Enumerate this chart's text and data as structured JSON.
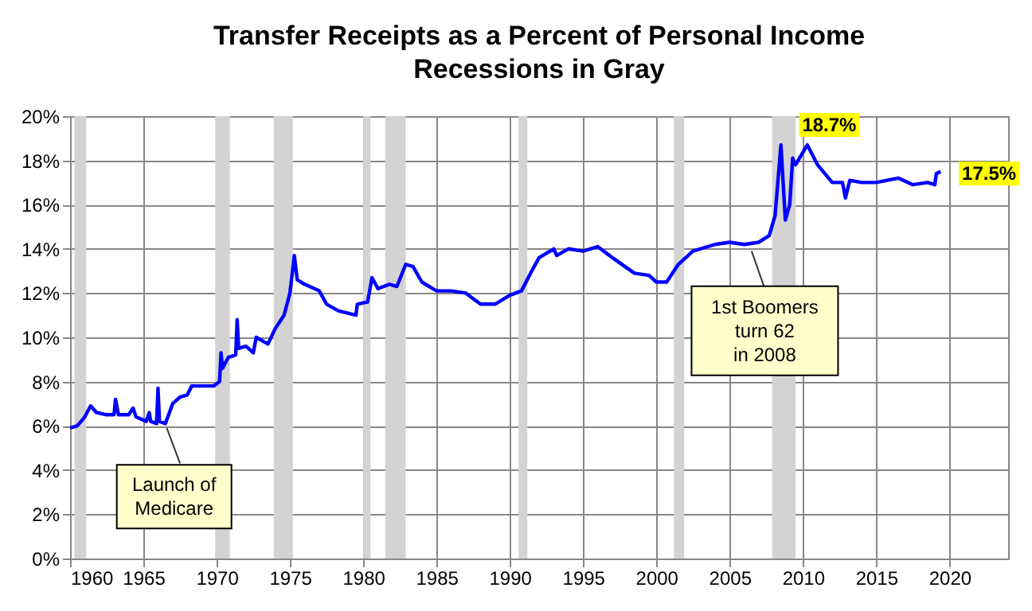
{
  "chart_data": {
    "type": "line",
    "title": "Transfer Receipts as a Percent of Personal Income",
    "subtitle": "Recessions in Gray",
    "x": [
      1960,
      1960.5,
      1961,
      1961.4,
      1961.8,
      1962.5,
      1963,
      1963.1,
      1963.3,
      1964,
      1964.3,
      1964.5,
      1965.2,
      1965.4,
      1965.5,
      1965.9,
      1966,
      1966.1,
      1966.5,
      1967,
      1967.5,
      1968,
      1968.3,
      1969,
      1969.8,
      1970.2,
      1970.3,
      1970.4,
      1970.8,
      1971.3,
      1971.4,
      1971.5,
      1972,
      1972.5,
      1972.7,
      1973.5,
      1974,
      1974.6,
      1975,
      1975.3,
      1975.5,
      1976,
      1977,
      1977.5,
      1978.3,
      1979.5,
      1979.6,
      1980.3,
      1980.6,
      1981,
      1981.8,
      1982.3,
      1982.9,
      1983.4,
      1984,
      1985,
      1986,
      1987,
      1988,
      1989,
      1990,
      1990.8,
      1991.5,
      1992,
      1993,
      1993.2,
      1994,
      1995,
      1996,
      1997,
      1998.5,
      1999.5,
      2000,
      2000.7,
      2001.5,
      2002.5,
      2004,
      2005,
      2006,
      2007,
      2007.7,
      2008.1,
      2008.5,
      2008.8,
      2009.1,
      2009.3,
      2009.5,
      2010.3,
      2011,
      2012,
      2012.7,
      2012.9,
      2013.2,
      2014,
      2015,
      2016.5,
      2017.5,
      2018.5,
      2019,
      2019.1,
      2019.4
    ],
    "series": [
      {
        "color": "#0000ff",
        "values": [
          5.9,
          6.0,
          6.4,
          6.9,
          6.6,
          6.5,
          6.5,
          7.2,
          6.5,
          6.5,
          6.8,
          6.4,
          6.2,
          6.6,
          6.2,
          6.1,
          7.7,
          6.2,
          6.1,
          7.0,
          7.3,
          7.4,
          7.8,
          7.8,
          7.8,
          8.0,
          9.3,
          8.6,
          9.1,
          9.2,
          10.8,
          9.5,
          9.6,
          9.3,
          10.0,
          9.7,
          10.4,
          11.0,
          12.0,
          13.7,
          12.6,
          12.4,
          12.1,
          11.5,
          11.2,
          11.0,
          11.5,
          11.6,
          12.7,
          12.2,
          12.4,
          12.3,
          13.3,
          13.2,
          12.5,
          12.1,
          12.1,
          12.0,
          11.5,
          11.5,
          11.9,
          12.1,
          13.0,
          13.6,
          14.0,
          13.7,
          14.0,
          13.9,
          14.1,
          13.6,
          12.9,
          12.8,
          12.5,
          12.5,
          13.3,
          13.9,
          14.2,
          14.3,
          14.2,
          14.3,
          14.6,
          15.5,
          18.7,
          15.3,
          16.0,
          18.1,
          17.8,
          18.7,
          17.8,
          17.0,
          17.0,
          16.3,
          17.1,
          17.0,
          17.0,
          17.2,
          16.9,
          17.0,
          16.9,
          17.4,
          17.5
        ]
      }
    ],
    "xlim": [
      1960,
      2024
    ],
    "xticks": [
      1960,
      1965,
      1970,
      1975,
      1980,
      1985,
      1990,
      1995,
      2000,
      2005,
      2010,
      2015,
      2020
    ],
    "ylim": [
      0,
      20
    ],
    "yticks": [
      {
        "value": 0,
        "label": "0%"
      },
      {
        "value": 2,
        "label": "2%"
      },
      {
        "value": 4,
        "label": "4%"
      },
      {
        "value": 6,
        "label": "6%"
      },
      {
        "value": 8,
        "label": "8%"
      },
      {
        "value": 10,
        "label": "10%"
      },
      {
        "value": 12,
        "label": "12%"
      },
      {
        "value": 14,
        "label": "14%"
      },
      {
        "value": 16,
        "label": "16%"
      },
      {
        "value": 18,
        "label": "18%"
      },
      {
        "value": 20,
        "label": "20%"
      }
    ],
    "grid": true,
    "line_style": "solid",
    "bands": [
      {
        "axis": "x",
        "from": 1960.3,
        "to": 1961.1,
        "color": "#d3d3d3"
      },
      {
        "axis": "x",
        "from": 1969.9,
        "to": 1970.9,
        "color": "#d3d3d3"
      },
      {
        "axis": "x",
        "from": 1973.9,
        "to": 1975.2,
        "color": "#d3d3d3"
      },
      {
        "axis": "x",
        "from": 1980.0,
        "to": 1980.5,
        "color": "#d3d3d3"
      },
      {
        "axis": "x",
        "from": 1981.5,
        "to": 1982.9,
        "color": "#d3d3d3"
      },
      {
        "axis": "x",
        "from": 1990.6,
        "to": 1991.2,
        "color": "#d3d3d3"
      },
      {
        "axis": "x",
        "from": 2001.2,
        "to": 2001.9,
        "color": "#d3d3d3"
      },
      {
        "axis": "x",
        "from": 2007.9,
        "to": 2009.5,
        "color": "#d3d3d3"
      }
    ],
    "annotations": [
      {
        "text": "18.7%",
        "x": 2010.3,
        "y": 18.7
      },
      {
        "text": "17.5%",
        "x": 2019.4,
        "y": 17.5
      },
      {
        "text": "Launch of\nMedicare",
        "x": 1966.5,
        "y": 6.1
      },
      {
        "text": "1st Boomers\nturn 62\nin 2008",
        "x": 2006.5,
        "y": 14.1
      }
    ]
  }
}
